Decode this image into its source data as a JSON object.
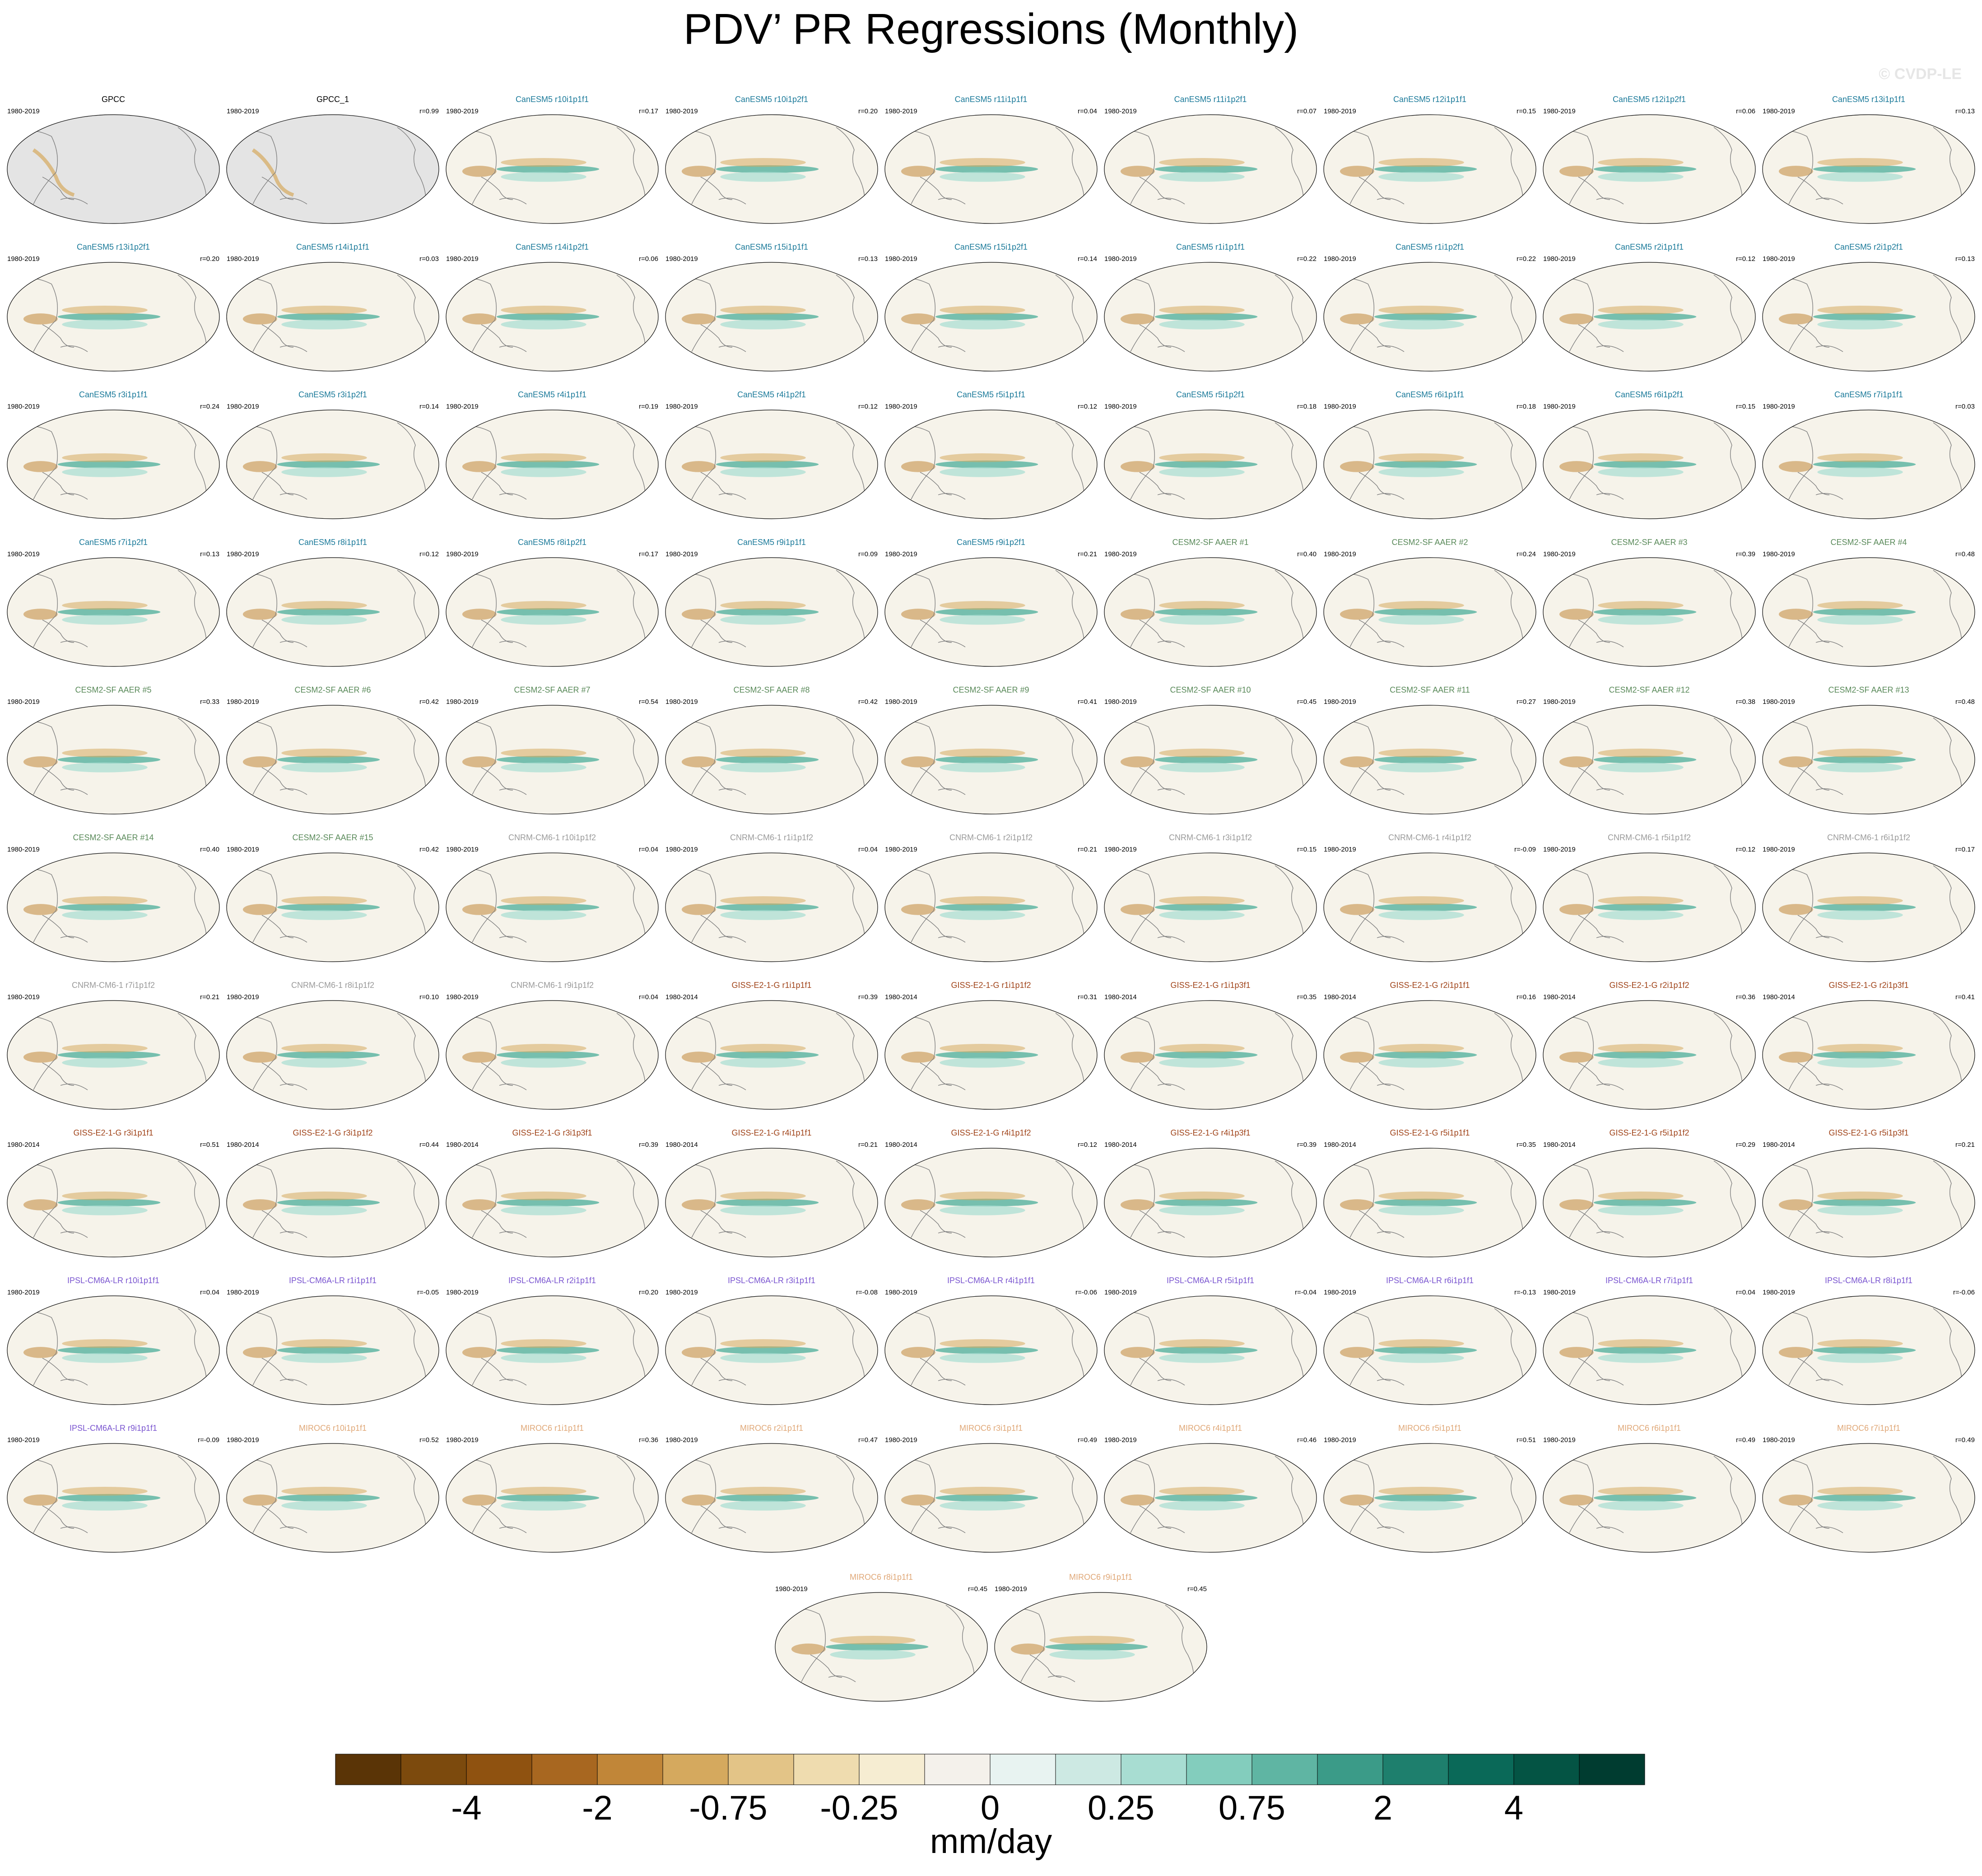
{
  "title": "PDV’ PR Regressions (Monthly)",
  "copyright": "© CVDP-LE",
  "colorbar": {
    "unit": "mm/day",
    "tick_labels": [
      "-4",
      "-2",
      "-0.75",
      "-0.25",
      "0",
      "0.25",
      "0.75",
      "2",
      "4"
    ],
    "colors": [
      "#5a3406",
      "#7c4a0d",
      "#8f5210",
      "#a86720",
      "#c18638",
      "#d5a95e",
      "#e3c487",
      "#efdcaf",
      "#f6edd2",
      "#f4f1eb",
      "#e8f3f1",
      "#cde9e3",
      "#a8ddd2",
      "#83cdbd",
      "#5fb5a3",
      "#3b9b88",
      "#1e7f6d",
      "#0a6958",
      "#045444",
      "#003c30"
    ]
  },
  "group_colors": {
    "obs": "#000000",
    "CanESM5": "#1b7a9a",
    "CESM2-SF AAER": "#5a8a5a",
    "CNRM-CM6-1": "#9a9a9a",
    "GISS-E2-1-G": "#a0441a",
    "IPSL-CM6A-LR": "#7a55d0",
    "MIROC6": "#e0a878"
  },
  "chart_data": {
    "type": "heatmap",
    "description_variable": "PDV’ PR Regressions (Monthly)",
    "units": "mm/day",
    "panels": [
      {
        "title": "GPCC",
        "group": "obs",
        "years": "1980-2019",
        "r": ""
      },
      {
        "title": "GPCC_1",
        "group": "obs",
        "years": "1980-2019",
        "r": "r=0.99"
      },
      {
        "title": "CanESM5 r10i1p1f1",
        "group": "CanESM5",
        "years": "1980-2019",
        "r": "r=0.17"
      },
      {
        "title": "CanESM5 r10i1p2f1",
        "group": "CanESM5",
        "years": "1980-2019",
        "r": "r=0.20"
      },
      {
        "title": "CanESM5 r11i1p1f1",
        "group": "CanESM5",
        "years": "1980-2019",
        "r": "r=0.04"
      },
      {
        "title": "CanESM5 r11i1p2f1",
        "group": "CanESM5",
        "years": "1980-2019",
        "r": "r=0.07"
      },
      {
        "title": "CanESM5 r12i1p1f1",
        "group": "CanESM5",
        "years": "1980-2019",
        "r": "r=0.15"
      },
      {
        "title": "CanESM5 r12i1p2f1",
        "group": "CanESM5",
        "years": "1980-2019",
        "r": "r=0.06"
      },
      {
        "title": "CanESM5 r13i1p1f1",
        "group": "CanESM5",
        "years": "1980-2019",
        "r": "r=0.13"
      },
      {
        "title": "CanESM5 r13i1p2f1",
        "group": "CanESM5",
        "years": "1980-2019",
        "r": "r=0.20"
      },
      {
        "title": "CanESM5 r14i1p1f1",
        "group": "CanESM5",
        "years": "1980-2019",
        "r": "r=0.03"
      },
      {
        "title": "CanESM5 r14i1p2f1",
        "group": "CanESM5",
        "years": "1980-2019",
        "r": "r=0.06"
      },
      {
        "title": "CanESM5 r15i1p1f1",
        "group": "CanESM5",
        "years": "1980-2019",
        "r": "r=0.13"
      },
      {
        "title": "CanESM5 r15i1p2f1",
        "group": "CanESM5",
        "years": "1980-2019",
        "r": "r=0.14"
      },
      {
        "title": "CanESM5 r1i1p1f1",
        "group": "CanESM5",
        "years": "1980-2019",
        "r": "r=0.22"
      },
      {
        "title": "CanESM5 r1i1p2f1",
        "group": "CanESM5",
        "years": "1980-2019",
        "r": "r=0.22"
      },
      {
        "title": "CanESM5 r2i1p1f1",
        "group": "CanESM5",
        "years": "1980-2019",
        "r": "r=0.12"
      },
      {
        "title": "CanESM5 r2i1p2f1",
        "group": "CanESM5",
        "years": "1980-2019",
        "r": "r=0.13"
      },
      {
        "title": "CanESM5 r3i1p1f1",
        "group": "CanESM5",
        "years": "1980-2019",
        "r": "r=0.24"
      },
      {
        "title": "CanESM5 r3i1p2f1",
        "group": "CanESM5",
        "years": "1980-2019",
        "r": "r=0.14"
      },
      {
        "title": "CanESM5 r4i1p1f1",
        "group": "CanESM5",
        "years": "1980-2019",
        "r": "r=0.19"
      },
      {
        "title": "CanESM5 r4i1p2f1",
        "group": "CanESM5",
        "years": "1980-2019",
        "r": "r=0.12"
      },
      {
        "title": "CanESM5 r5i1p1f1",
        "group": "CanESM5",
        "years": "1980-2019",
        "r": "r=0.12"
      },
      {
        "title": "CanESM5 r5i1p2f1",
        "group": "CanESM5",
        "years": "1980-2019",
        "r": "r=0.18"
      },
      {
        "title": "CanESM5 r6i1p1f1",
        "group": "CanESM5",
        "years": "1980-2019",
        "r": "r=0.18"
      },
      {
        "title": "CanESM5 r6i1p2f1",
        "group": "CanESM5",
        "years": "1980-2019",
        "r": "r=0.15"
      },
      {
        "title": "CanESM5 r7i1p1f1",
        "group": "CanESM5",
        "years": "1980-2019",
        "r": "r=0.03"
      },
      {
        "title": "CanESM5 r7i1p2f1",
        "group": "CanESM5",
        "years": "1980-2019",
        "r": "r=0.13"
      },
      {
        "title": "CanESM5 r8i1p1f1",
        "group": "CanESM5",
        "years": "1980-2019",
        "r": "r=0.12"
      },
      {
        "title": "CanESM5 r8i1p2f1",
        "group": "CanESM5",
        "years": "1980-2019",
        "r": "r=0.17"
      },
      {
        "title": "CanESM5 r9i1p1f1",
        "group": "CanESM5",
        "years": "1980-2019",
        "r": "r=0.09"
      },
      {
        "title": "CanESM5 r9i1p2f1",
        "group": "CanESM5",
        "years": "1980-2019",
        "r": "r=0.21"
      },
      {
        "title": "CESM2-SF AAER #1",
        "group": "CESM2-SF AAER",
        "years": "1980-2019",
        "r": "r=0.40"
      },
      {
        "title": "CESM2-SF AAER #2",
        "group": "CESM2-SF AAER",
        "years": "1980-2019",
        "r": "r=0.24"
      },
      {
        "title": "CESM2-SF AAER #3",
        "group": "CESM2-SF AAER",
        "years": "1980-2019",
        "r": "r=0.39"
      },
      {
        "title": "CESM2-SF AAER #4",
        "group": "CESM2-SF AAER",
        "years": "1980-2019",
        "r": "r=0.48"
      },
      {
        "title": "CESM2-SF AAER #5",
        "group": "CESM2-SF AAER",
        "years": "1980-2019",
        "r": "r=0.33"
      },
      {
        "title": "CESM2-SF AAER #6",
        "group": "CESM2-SF AAER",
        "years": "1980-2019",
        "r": "r=0.42"
      },
      {
        "title": "CESM2-SF AAER #7",
        "group": "CESM2-SF AAER",
        "years": "1980-2019",
        "r": "r=0.54"
      },
      {
        "title": "CESM2-SF AAER #8",
        "group": "CESM2-SF AAER",
        "years": "1980-2019",
        "r": "r=0.42"
      },
      {
        "title": "CESM2-SF AAER #9",
        "group": "CESM2-SF AAER",
        "years": "1980-2019",
        "r": "r=0.41"
      },
      {
        "title": "CESM2-SF AAER #10",
        "group": "CESM2-SF AAER",
        "years": "1980-2019",
        "r": "r=0.45"
      },
      {
        "title": "CESM2-SF AAER #11",
        "group": "CESM2-SF AAER",
        "years": "1980-2019",
        "r": "r=0.27"
      },
      {
        "title": "CESM2-SF AAER #12",
        "group": "CESM2-SF AAER",
        "years": "1980-2019",
        "r": "r=0.38"
      },
      {
        "title": "CESM2-SF AAER #13",
        "group": "CESM2-SF AAER",
        "years": "1980-2019",
        "r": "r=0.48"
      },
      {
        "title": "CESM2-SF AAER #14",
        "group": "CESM2-SF AAER",
        "years": "1980-2019",
        "r": "r=0.40"
      },
      {
        "title": "CESM2-SF AAER #15",
        "group": "CESM2-SF AAER",
        "years": "1980-2019",
        "r": "r=0.42"
      },
      {
        "title": "CNRM-CM6-1 r10i1p1f2",
        "group": "CNRM-CM6-1",
        "years": "1980-2019",
        "r": "r=0.04"
      },
      {
        "title": "CNRM-CM6-1 r1i1p1f2",
        "group": "CNRM-CM6-1",
        "years": "1980-2019",
        "r": "r=0.04"
      },
      {
        "title": "CNRM-CM6-1 r2i1p1f2",
        "group": "CNRM-CM6-1",
        "years": "1980-2019",
        "r": "r=0.21"
      },
      {
        "title": "CNRM-CM6-1 r3i1p1f2",
        "group": "CNRM-CM6-1",
        "years": "1980-2019",
        "r": "r=0.15"
      },
      {
        "title": "CNRM-CM6-1 r4i1p1f2",
        "group": "CNRM-CM6-1",
        "years": "1980-2019",
        "r": "r=-0.09"
      },
      {
        "title": "CNRM-CM6-1 r5i1p1f2",
        "group": "CNRM-CM6-1",
        "years": "1980-2019",
        "r": "r=0.12"
      },
      {
        "title": "CNRM-CM6-1 r6i1p1f2",
        "group": "CNRM-CM6-1",
        "years": "1980-2019",
        "r": "r=0.17"
      },
      {
        "title": "CNRM-CM6-1 r7i1p1f2",
        "group": "CNRM-CM6-1",
        "years": "1980-2019",
        "r": "r=0.21"
      },
      {
        "title": "CNRM-CM6-1 r8i1p1f2",
        "group": "CNRM-CM6-1",
        "years": "1980-2019",
        "r": "r=0.10"
      },
      {
        "title": "CNRM-CM6-1 r9i1p1f2",
        "group": "CNRM-CM6-1",
        "years": "1980-2019",
        "r": "r=0.04"
      },
      {
        "title": "GISS-E2-1-G r1i1p1f1",
        "group": "GISS-E2-1-G",
        "years": "1980-2014",
        "r": "r=0.39"
      },
      {
        "title": "GISS-E2-1-G r1i1p1f2",
        "group": "GISS-E2-1-G",
        "years": "1980-2014",
        "r": "r=0.31"
      },
      {
        "title": "GISS-E2-1-G r1i1p3f1",
        "group": "GISS-E2-1-G",
        "years": "1980-2014",
        "r": "r=0.35"
      },
      {
        "title": "GISS-E2-1-G r2i1p1f1",
        "group": "GISS-E2-1-G",
        "years": "1980-2014",
        "r": "r=0.16"
      },
      {
        "title": "GISS-E2-1-G r2i1p1f2",
        "group": "GISS-E2-1-G",
        "years": "1980-2014",
        "r": "r=0.36"
      },
      {
        "title": "GISS-E2-1-G r2i1p3f1",
        "group": "GISS-E2-1-G",
        "years": "1980-2014",
        "r": "r=0.41"
      },
      {
        "title": "GISS-E2-1-G r3i1p1f1",
        "group": "GISS-E2-1-G",
        "years": "1980-2014",
        "r": "r=0.51"
      },
      {
        "title": "GISS-E2-1-G r3i1p1f2",
        "group": "GISS-E2-1-G",
        "years": "1980-2014",
        "r": "r=0.44"
      },
      {
        "title": "GISS-E2-1-G r3i1p3f1",
        "group": "GISS-E2-1-G",
        "years": "1980-2014",
        "r": "r=0.39"
      },
      {
        "title": "GISS-E2-1-G r4i1p1f1",
        "group": "GISS-E2-1-G",
        "years": "1980-2014",
        "r": "r=0.21"
      },
      {
        "title": "GISS-E2-1-G r4i1p1f2",
        "group": "GISS-E2-1-G",
        "years": "1980-2014",
        "r": "r=0.12"
      },
      {
        "title": "GISS-E2-1-G r4i1p3f1",
        "group": "GISS-E2-1-G",
        "years": "1980-2014",
        "r": "r=0.39"
      },
      {
        "title": "GISS-E2-1-G r5i1p1f1",
        "group": "GISS-E2-1-G",
        "years": "1980-2014",
        "r": "r=0.35"
      },
      {
        "title": "GISS-E2-1-G r5i1p1f2",
        "group": "GISS-E2-1-G",
        "years": "1980-2014",
        "r": "r=0.29"
      },
      {
        "title": "GISS-E2-1-G r5i1p3f1",
        "group": "GISS-E2-1-G",
        "years": "1980-2014",
        "r": "r=0.21"
      },
      {
        "title": "IPSL-CM6A-LR r10i1p1f1",
        "group": "IPSL-CM6A-LR",
        "years": "1980-2019",
        "r": "r=0.04"
      },
      {
        "title": "IPSL-CM6A-LR r1i1p1f1",
        "group": "IPSL-CM6A-LR",
        "years": "1980-2019",
        "r": "r=-0.05"
      },
      {
        "title": "IPSL-CM6A-LR r2i1p1f1",
        "group": "IPSL-CM6A-LR",
        "years": "1980-2019",
        "r": "r=0.20"
      },
      {
        "title": "IPSL-CM6A-LR r3i1p1f1",
        "group": "IPSL-CM6A-LR",
        "years": "1980-2019",
        "r": "r=-0.08"
      },
      {
        "title": "IPSL-CM6A-LR r4i1p1f1",
        "group": "IPSL-CM6A-LR",
        "years": "1980-2019",
        "r": "r=-0.06"
      },
      {
        "title": "IPSL-CM6A-LR r5i1p1f1",
        "group": "IPSL-CM6A-LR",
        "years": "1980-2019",
        "r": "r=-0.04"
      },
      {
        "title": "IPSL-CM6A-LR r6i1p1f1",
        "group": "IPSL-CM6A-LR",
        "years": "1980-2019",
        "r": "r=-0.13"
      },
      {
        "title": "IPSL-CM6A-LR r7i1p1f1",
        "group": "IPSL-CM6A-LR",
        "years": "1980-2019",
        "r": "r=0.04"
      },
      {
        "title": "IPSL-CM6A-LR r8i1p1f1",
        "group": "IPSL-CM6A-LR",
        "years": "1980-2019",
        "r": "r=-0.06"
      },
      {
        "title": "IPSL-CM6A-LR r9i1p1f1",
        "group": "IPSL-CM6A-LR",
        "years": "1980-2019",
        "r": "r=-0.09"
      },
      {
        "title": "MIROC6 r10i1p1f1",
        "group": "MIROC6",
        "years": "1980-2019",
        "r": "r=0.52"
      },
      {
        "title": "MIROC6 r1i1p1f1",
        "group": "MIROC6",
        "years": "1980-2019",
        "r": "r=0.36"
      },
      {
        "title": "MIROC6 r2i1p1f1",
        "group": "MIROC6",
        "years": "1980-2019",
        "r": "r=0.47"
      },
      {
        "title": "MIROC6 r3i1p1f1",
        "group": "MIROC6",
        "years": "1980-2019",
        "r": "r=0.49"
      },
      {
        "title": "MIROC6 r4i1p1f1",
        "group": "MIROC6",
        "years": "1980-2019",
        "r": "r=0.46"
      },
      {
        "title": "MIROC6 r5i1p1f1",
        "group": "MIROC6",
        "years": "1980-2019",
        "r": "r=0.51"
      },
      {
        "title": "MIROC6 r6i1p1f1",
        "group": "MIROC6",
        "years": "1980-2019",
        "r": "r=0.49"
      },
      {
        "title": "MIROC6 r7i1p1f1",
        "group": "MIROC6",
        "years": "1980-2019",
        "r": "r=0.49"
      },
      {
        "title": "MIROC6 r8i1p1f1",
        "group": "MIROC6",
        "years": "1980-2019",
        "r": "r=0.45"
      },
      {
        "title": "MIROC6 r9i1p1f1",
        "group": "MIROC6",
        "years": "1980-2019",
        "r": "r=0.45"
      }
    ]
  }
}
